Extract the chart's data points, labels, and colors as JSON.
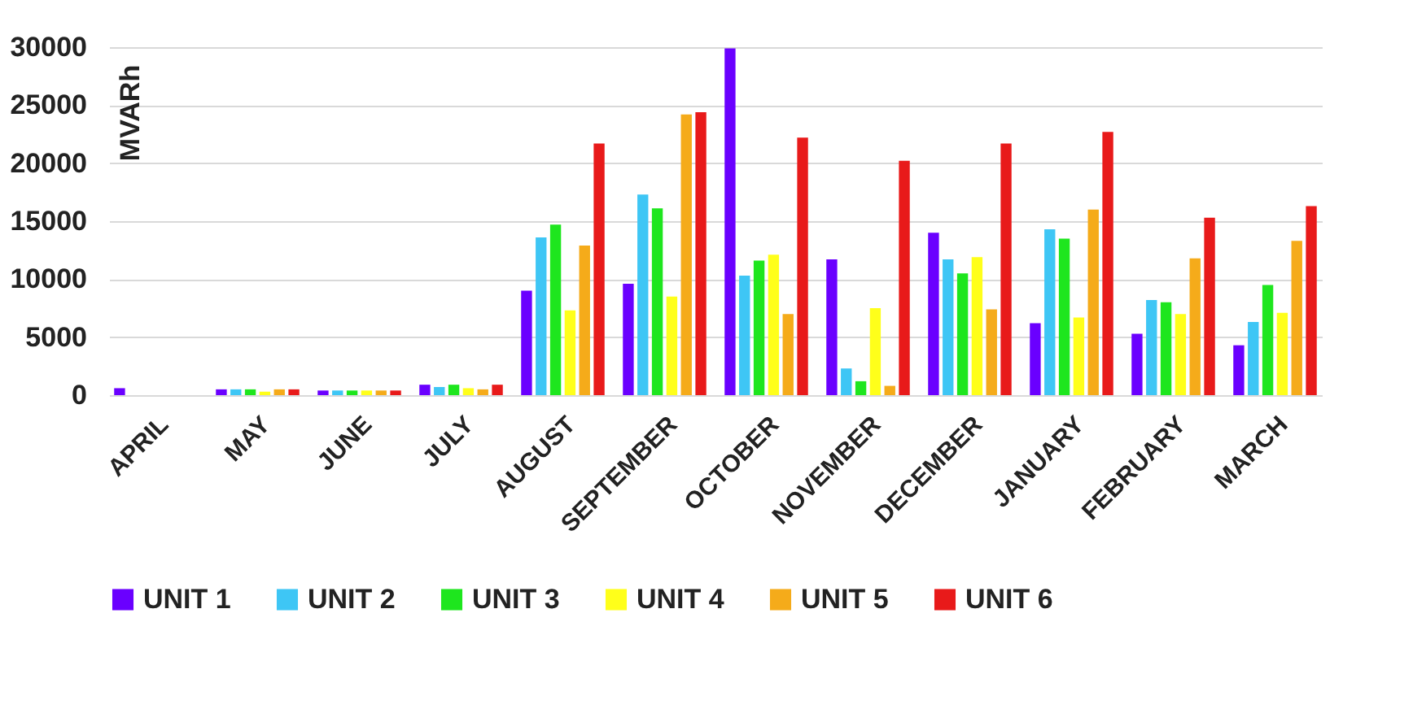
{
  "chart_data": {
    "type": "bar",
    "ylabel": "MVARh",
    "categories": [
      "APRIL",
      "MAY",
      "JUNE",
      "JULY",
      "AUGUST",
      "SEPTEMBER",
      "OCTOBER",
      "NOVEMBER",
      "DECEMBER",
      "JANUARY",
      "FEBRUARY",
      "MARCH"
    ],
    "ylim": [
      0,
      30000
    ],
    "yticks": [
      0,
      5000,
      10000,
      15000,
      20000,
      25000,
      30000
    ],
    "grid": "y",
    "legend": "bottom",
    "series": [
      {
        "name": "UNIT 1",
        "color": "#6a00ff",
        "values": [
          600,
          500,
          400,
          900,
          9000,
          9600,
          29900,
          11700,
          14000,
          6200,
          5300,
          4300
        ]
      },
      {
        "name": "UNIT 2",
        "color": "#3ec6f5",
        "values": [
          0,
          500,
          400,
          700,
          13600,
          17300,
          10300,
          2300,
          11700,
          14300,
          8200,
          6300
        ]
      },
      {
        "name": "UNIT 3",
        "color": "#1ee61e",
        "values": [
          0,
          500,
          400,
          900,
          14700,
          16100,
          11600,
          1200,
          10500,
          13500,
          8000,
          9500
        ]
      },
      {
        "name": "UNIT 4",
        "color": "#ffff1a",
        "values": [
          0,
          300,
          400,
          600,
          7300,
          8500,
          12100,
          7500,
          11900,
          6700,
          7000,
          7100
        ]
      },
      {
        "name": "UNIT 5",
        "color": "#f5ab1a",
        "values": [
          0,
          500,
          400,
          500,
          12900,
          24200,
          7000,
          800,
          7400,
          16000,
          11800,
          13300
        ]
      },
      {
        "name": "UNIT 6",
        "color": "#e81a1a",
        "values": [
          0,
          500,
          400,
          900,
          21700,
          24400,
          22200,
          20200,
          21700,
          22700,
          15300,
          16300
        ]
      }
    ]
  }
}
